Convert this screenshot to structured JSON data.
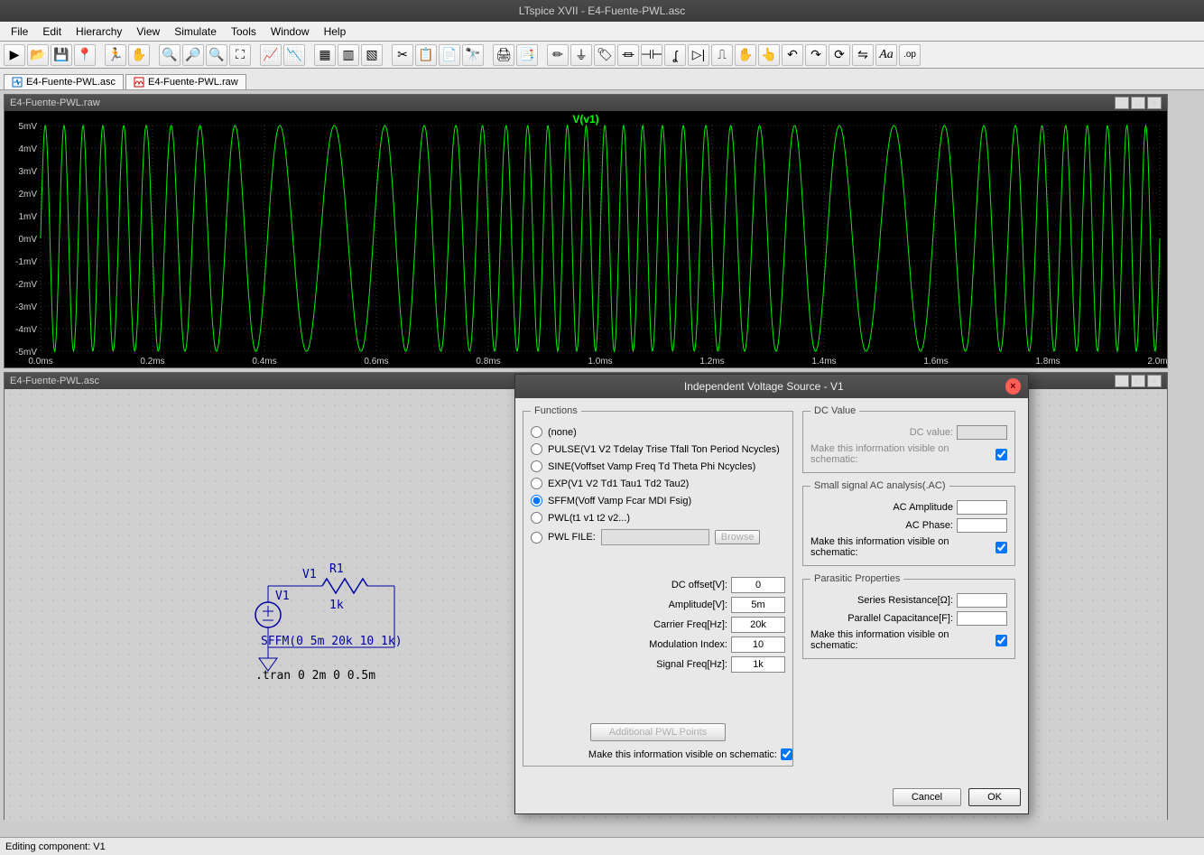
{
  "app": {
    "title": "LTspice XVII - E4-Fuente-PWL.asc",
    "status": "Editing component: V1"
  },
  "menu": [
    "File",
    "Edit",
    "Hierarchy",
    "View",
    "Simulate",
    "Tools",
    "Window",
    "Help"
  ],
  "tabs": [
    {
      "label": "E4-Fuente-PWL.asc",
      "icon": "sch"
    },
    {
      "label": "E4-Fuente-PWL.raw",
      "icon": "wave"
    }
  ],
  "wave_window": {
    "title": "E4-Fuente-PWL.raw",
    "trace_label": "V(v1)",
    "plot": {
      "bg": "#000000",
      "trace_color": "#00ee00",
      "grid_color": "#3a3a3a",
      "axis_label_color": "#cccccc",
      "y_min_mv": -5,
      "y_max_mv": 5,
      "y_step_mv": 1,
      "x_min_ms": 0.0,
      "x_max_ms": 2.0,
      "x_step_ms": 0.2,
      "carrier_hz": 20000,
      "signal_hz": 1000,
      "mod_index": 10,
      "amplitude_mv": 5
    }
  },
  "schem_window": {
    "title": "E4-Fuente-PWL.asc",
    "labels": {
      "v1_name": "V1",
      "v1_net": "V1",
      "r1_name": "R1",
      "r1_val": "1k",
      "src_text": "SFFM(0 5m 20k 10 1k)",
      "tran_text": ".tran 0 2m 0 0.5m"
    }
  },
  "dialog": {
    "title": "Independent Voltage Source - V1",
    "group_functions": "Functions",
    "functions": [
      {
        "label": "(none)",
        "sel": false
      },
      {
        "label": "PULSE(V1 V2 Tdelay Trise Tfall Ton Period Ncycles)",
        "sel": false
      },
      {
        "label": "SINE(Voffset Vamp Freq Td Theta Phi Ncycles)",
        "sel": false
      },
      {
        "label": "EXP(V1 V2 Td1 Tau1 Td2 Tau2)",
        "sel": false
      },
      {
        "label": "SFFM(Voff Vamp Fcar MDI Fsig)",
        "sel": true
      },
      {
        "label": "PWL(t1 v1 t2 v2...)",
        "sel": false
      }
    ],
    "pwl_file_label": "PWL FILE:",
    "browse": "Browse",
    "params": [
      {
        "label": "DC offset[V]:",
        "val": "0"
      },
      {
        "label": "Amplitude[V]:",
        "val": "5m"
      },
      {
        "label": "Carrier Freq[Hz]:",
        "val": "20k"
      },
      {
        "label": "Modulation Index:",
        "val": "10"
      },
      {
        "label": "Signal Freq[Hz]:",
        "val": "1k"
      }
    ],
    "addl_pwl": "Additional PWL Points",
    "visible_chk": "Make this information visible on schematic:",
    "group_dc": "DC Value",
    "dc_value_label": "DC value:",
    "group_ac": "Small signal AC analysis(.AC)",
    "ac_amp": "AC Amplitude",
    "ac_phase": "AC Phase:",
    "group_para": "Parasitic Properties",
    "series_r": "Series Resistance[Ω]:",
    "parallel_c": "Parallel Capacitance[F]:",
    "ok": "OK",
    "cancel": "Cancel"
  }
}
